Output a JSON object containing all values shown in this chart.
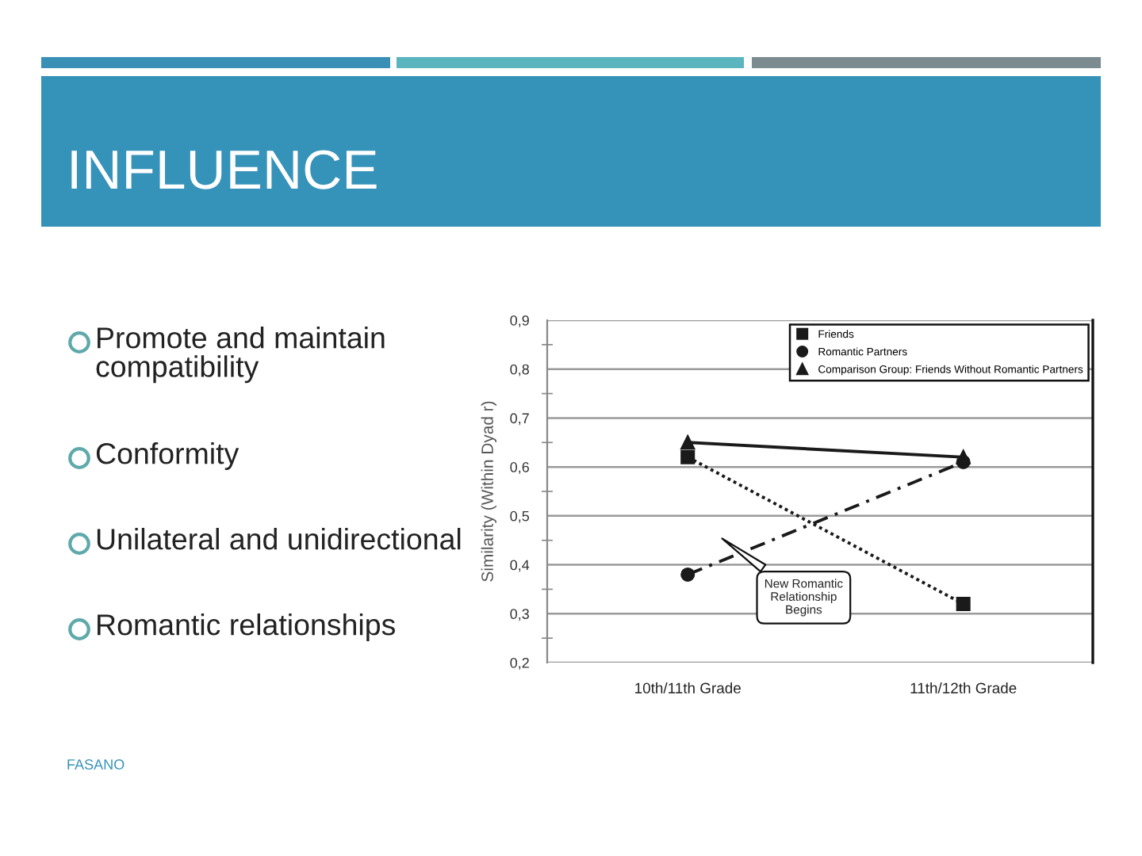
{
  "chart_data": {
    "type": "line",
    "title": "INFLUENCE",
    "ylabel": "Similarity (Within Dyad r)",
    "categories": [
      "10th/11th Grade",
      "11th/12th Grade"
    ],
    "series": [
      {
        "name": "Friends",
        "color": "#1a1a1a",
        "values": [
          0.62,
          0.32
        ],
        "marker": "square",
        "line_style": "dotted"
      },
      {
        "name": "Romantic Partners",
        "color": "#1a1a1a",
        "values": [
          0.38,
          0.61
        ],
        "marker": "circle",
        "line_style": "dashdot"
      },
      {
        "name": "Comparison Group: Friends Without Romantic Partners",
        "color": "#1a1a1a",
        "values": [
          0.65,
          0.62
        ],
        "marker": "triangle",
        "line_style": "solid"
      }
    ],
    "ylim": [
      0.2,
      0.9
    ],
    "yticks": [
      {
        "value": 0.2,
        "label": "0,2"
      },
      {
        "value": 0.3,
        "label": "0,3"
      },
      {
        "value": 0.4,
        "label": "0,4"
      },
      {
        "value": 0.5,
        "label": "0,5"
      },
      {
        "value": 0.6,
        "label": "0,6"
      },
      {
        "value": 0.7,
        "label": "0,7"
      },
      {
        "value": 0.8,
        "label": "0,8"
      },
      {
        "value": 0.9,
        "label": "0,9"
      }
    ],
    "grid": "y",
    "legend": "top right",
    "annotations": [
      "Promote and maintain\ncompatibility",
      "Conformity",
      "Unilateral and unidirectional",
      "Romantic relationships",
      "New Romantic\nRelationship\nBegins",
      "FASANO"
    ]
  }
}
